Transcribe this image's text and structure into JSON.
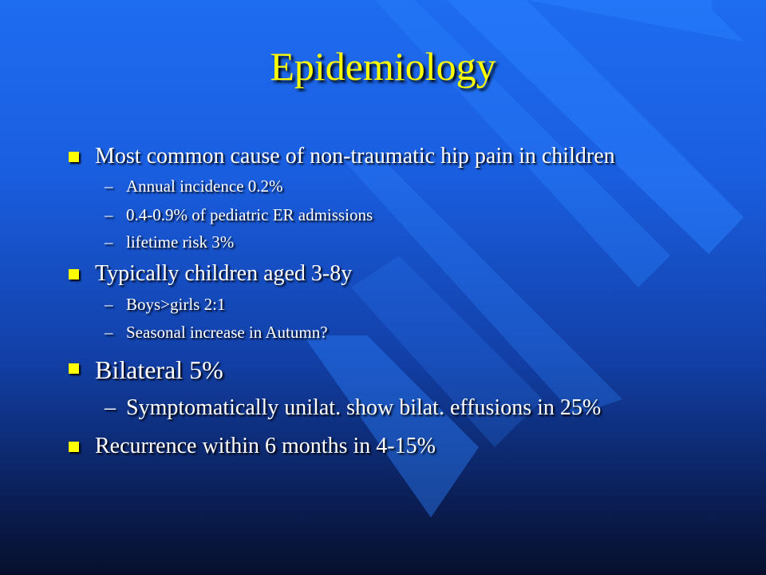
{
  "slide": {
    "title": "Epidemiology",
    "bullet_groups": [
      {
        "text": "Most common cause of non-traumatic hip pain in children",
        "subs": [
          "Annual incidence 0.2%",
          "0.4-0.9% of pediatric ER admissions",
          "lifetime risk 3%"
        ]
      },
      {
        "text": "Typically children aged 3-8y",
        "subs": [
          "Boys>girls 2:1",
          "Seasonal increase in Autumn?"
        ]
      },
      {
        "text": "Bilateral 5%",
        "subs": [
          "Symptomatically unilat. show bilat. effusions in 25%"
        ]
      },
      {
        "text": "Recurrence within 6 months in 4-15%",
        "subs": []
      }
    ],
    "dash": "–"
  },
  "colors": {
    "title": "#ffff00",
    "bullet": "#ffff00",
    "text": "#ffffff",
    "background_top": "#1e6cf0",
    "background_bottom": "#060f2c"
  }
}
